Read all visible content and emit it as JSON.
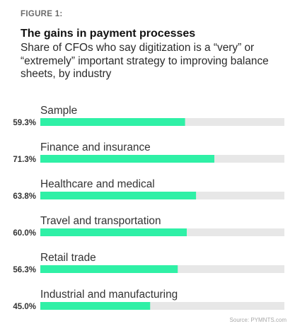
{
  "figure_label": "FIGURE 1:",
  "source": "Source: PYMNTS.com",
  "chart_data": {
    "type": "bar",
    "orientation": "horizontal",
    "title": "The gains in payment processes",
    "subtitle": "Share of CFOs who say digitization is a “very” or “extremely” important strategy to improving balance sheets, by industry",
    "categories": [
      "Sample",
      "Finance and insurance",
      "Healthcare and medical",
      "Travel and transportation",
      "Retail trade",
      "Industrial and manufacturing"
    ],
    "values": [
      59.3,
      71.3,
      63.8,
      60.0,
      56.3,
      45.0
    ],
    "value_labels": [
      "59.3%",
      "71.3%",
      "63.8%",
      "60.0%",
      "56.3%",
      "45.0%"
    ],
    "xlim": [
      0,
      100
    ],
    "grid": false,
    "legend": "none",
    "colors": {
      "bar": "#2ff0a6",
      "track": "#e7e7e7"
    }
  }
}
